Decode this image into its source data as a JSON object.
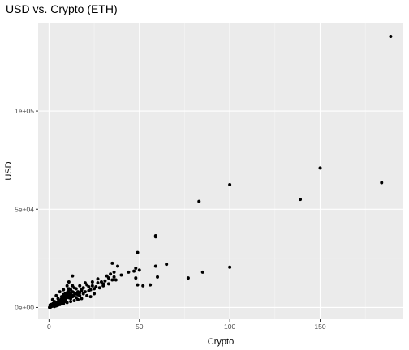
{
  "colors": {
    "panel": "#ebebeb",
    "grid_major": "#ffffff",
    "grid_minor": "#f5f5f5",
    "point": "#000000",
    "tick": "#333333"
  },
  "chart_data": {
    "type": "scatter",
    "title": "USD vs. Crypto (ETH)",
    "xlabel": "Crypto",
    "ylabel": "USD",
    "xlim": [
      -6,
      196
    ],
    "ylim": [
      -6000,
      145000
    ],
    "x_ticks": [
      0,
      50,
      100,
      150
    ],
    "x_tick_labels": [
      "0",
      "50",
      "100",
      "150"
    ],
    "y_ticks": [
      0,
      50000,
      100000
    ],
    "y_tick_labels": [
      "0e+00",
      "5e+04",
      "1e+05"
    ],
    "grid": true,
    "legend": "none",
    "points": [
      [
        189,
        138000
      ],
      [
        150,
        71000
      ],
      [
        184,
        63500
      ],
      [
        139,
        55000
      ],
      [
        100,
        62500
      ],
      [
        83,
        54000
      ],
      [
        100,
        20500
      ],
      [
        85,
        18000
      ],
      [
        77,
        15000
      ],
      [
        65,
        22000
      ],
      [
        59,
        36500
      ],
      [
        59,
        36000
      ],
      [
        59,
        21000
      ],
      [
        60,
        15500
      ],
      [
        56,
        11500
      ],
      [
        49,
        28000
      ],
      [
        48,
        20000
      ],
      [
        50,
        19000
      ],
      [
        47,
        18500
      ],
      [
        48,
        15000
      ],
      [
        49,
        11500
      ],
      [
        52,
        11000
      ],
      [
        44,
        18000
      ],
      [
        40,
        16500
      ],
      [
        38,
        21000
      ],
      [
        35,
        22500
      ],
      [
        36,
        18000
      ],
      [
        37,
        14000
      ],
      [
        33,
        15000
      ],
      [
        30,
        12000
      ],
      [
        28,
        10000
      ],
      [
        25,
        9500
      ],
      [
        22,
        8500
      ],
      [
        20,
        8000
      ],
      [
        18,
        8500
      ],
      [
        14,
        7500
      ],
      [
        16,
        6500
      ],
      [
        12,
        7000
      ],
      [
        11,
        5000
      ],
      [
        13,
        16000
      ],
      [
        11,
        13000
      ],
      [
        13,
        11000
      ],
      [
        12,
        9000
      ],
      [
        11,
        9500
      ],
      [
        13,
        8000
      ],
      [
        10,
        6000
      ],
      [
        12,
        6500
      ],
      [
        9,
        5500
      ],
      [
        9,
        4000
      ],
      [
        8,
        5000
      ],
      [
        8,
        3500
      ],
      [
        7,
        4500
      ],
      [
        7,
        3000
      ],
      [
        6,
        3500
      ],
      [
        6,
        2500
      ],
      [
        5,
        3000
      ],
      [
        5,
        2000
      ],
      [
        4,
        2500
      ],
      [
        4,
        1500
      ],
      [
        3,
        1800
      ],
      [
        3,
        1000
      ],
      [
        2,
        1200
      ],
      [
        2,
        700
      ],
      [
        1.5,
        600
      ],
      [
        1,
        400
      ],
      [
        0.8,
        200
      ],
      [
        0.5,
        100
      ],
      [
        0.3,
        50
      ],
      [
        2.5,
        1500
      ],
      [
        3.5,
        2200
      ],
      [
        4.5,
        2000
      ],
      [
        5.5,
        2800
      ],
      [
        6.5,
        3800
      ],
      [
        7.5,
        3200
      ],
      [
        8.5,
        4200
      ],
      [
        9.5,
        4800
      ],
      [
        10.5,
        5200
      ],
      [
        11.5,
        5800
      ],
      [
        12.5,
        6200
      ],
      [
        10,
        7500
      ],
      [
        9,
        7000
      ],
      [
        8,
        6500
      ],
      [
        11,
        8500
      ],
      [
        12,
        4500
      ],
      [
        13,
        5500
      ],
      [
        14,
        6000
      ],
      [
        15,
        7000
      ],
      [
        16,
        8000
      ],
      [
        17,
        7500
      ],
      [
        18,
        9000
      ],
      [
        19,
        10000
      ],
      [
        21,
        11500
      ],
      [
        22,
        10500
      ],
      [
        23,
        9000
      ],
      [
        24,
        11000
      ],
      [
        26,
        10500
      ],
      [
        27,
        12500
      ],
      [
        29,
        13000
      ],
      [
        31,
        13500
      ],
      [
        32,
        16000
      ],
      [
        34,
        17000
      ],
      [
        35,
        14000
      ],
      [
        36,
        15500
      ],
      [
        33,
        12000
      ],
      [
        30,
        11000
      ],
      [
        27,
        14500
      ],
      [
        24,
        13000
      ],
      [
        20,
        12500
      ],
      [
        17,
        11000
      ],
      [
        15,
        9500
      ],
      [
        14,
        10000
      ],
      [
        6,
        8000
      ],
      [
        8,
        9000
      ],
      [
        10,
        11000
      ],
      [
        4,
        6000
      ],
      [
        2,
        4000
      ],
      [
        3,
        3000
      ],
      [
        1,
        1500
      ],
      [
        1.2,
        800
      ],
      [
        2.2,
        2000
      ],
      [
        0.6,
        1200
      ],
      [
        5,
        4500
      ],
      [
        7,
        5500
      ],
      [
        9,
        6000
      ],
      [
        11,
        7000
      ],
      [
        13,
        6000
      ],
      [
        15,
        5000
      ],
      [
        17,
        6000
      ],
      [
        19,
        7000
      ],
      [
        21,
        6000
      ],
      [
        23,
        5500
      ],
      [
        25,
        7000
      ],
      [
        12,
        3000
      ],
      [
        10,
        2500
      ],
      [
        14,
        3500
      ],
      [
        16,
        4000
      ],
      [
        18,
        4500
      ],
      [
        8,
        2000
      ],
      [
        6,
        1500
      ],
      [
        9,
        3000
      ],
      [
        7,
        2000
      ],
      [
        5,
        1200
      ],
      [
        4,
        800
      ],
      [
        3,
        500
      ]
    ]
  }
}
